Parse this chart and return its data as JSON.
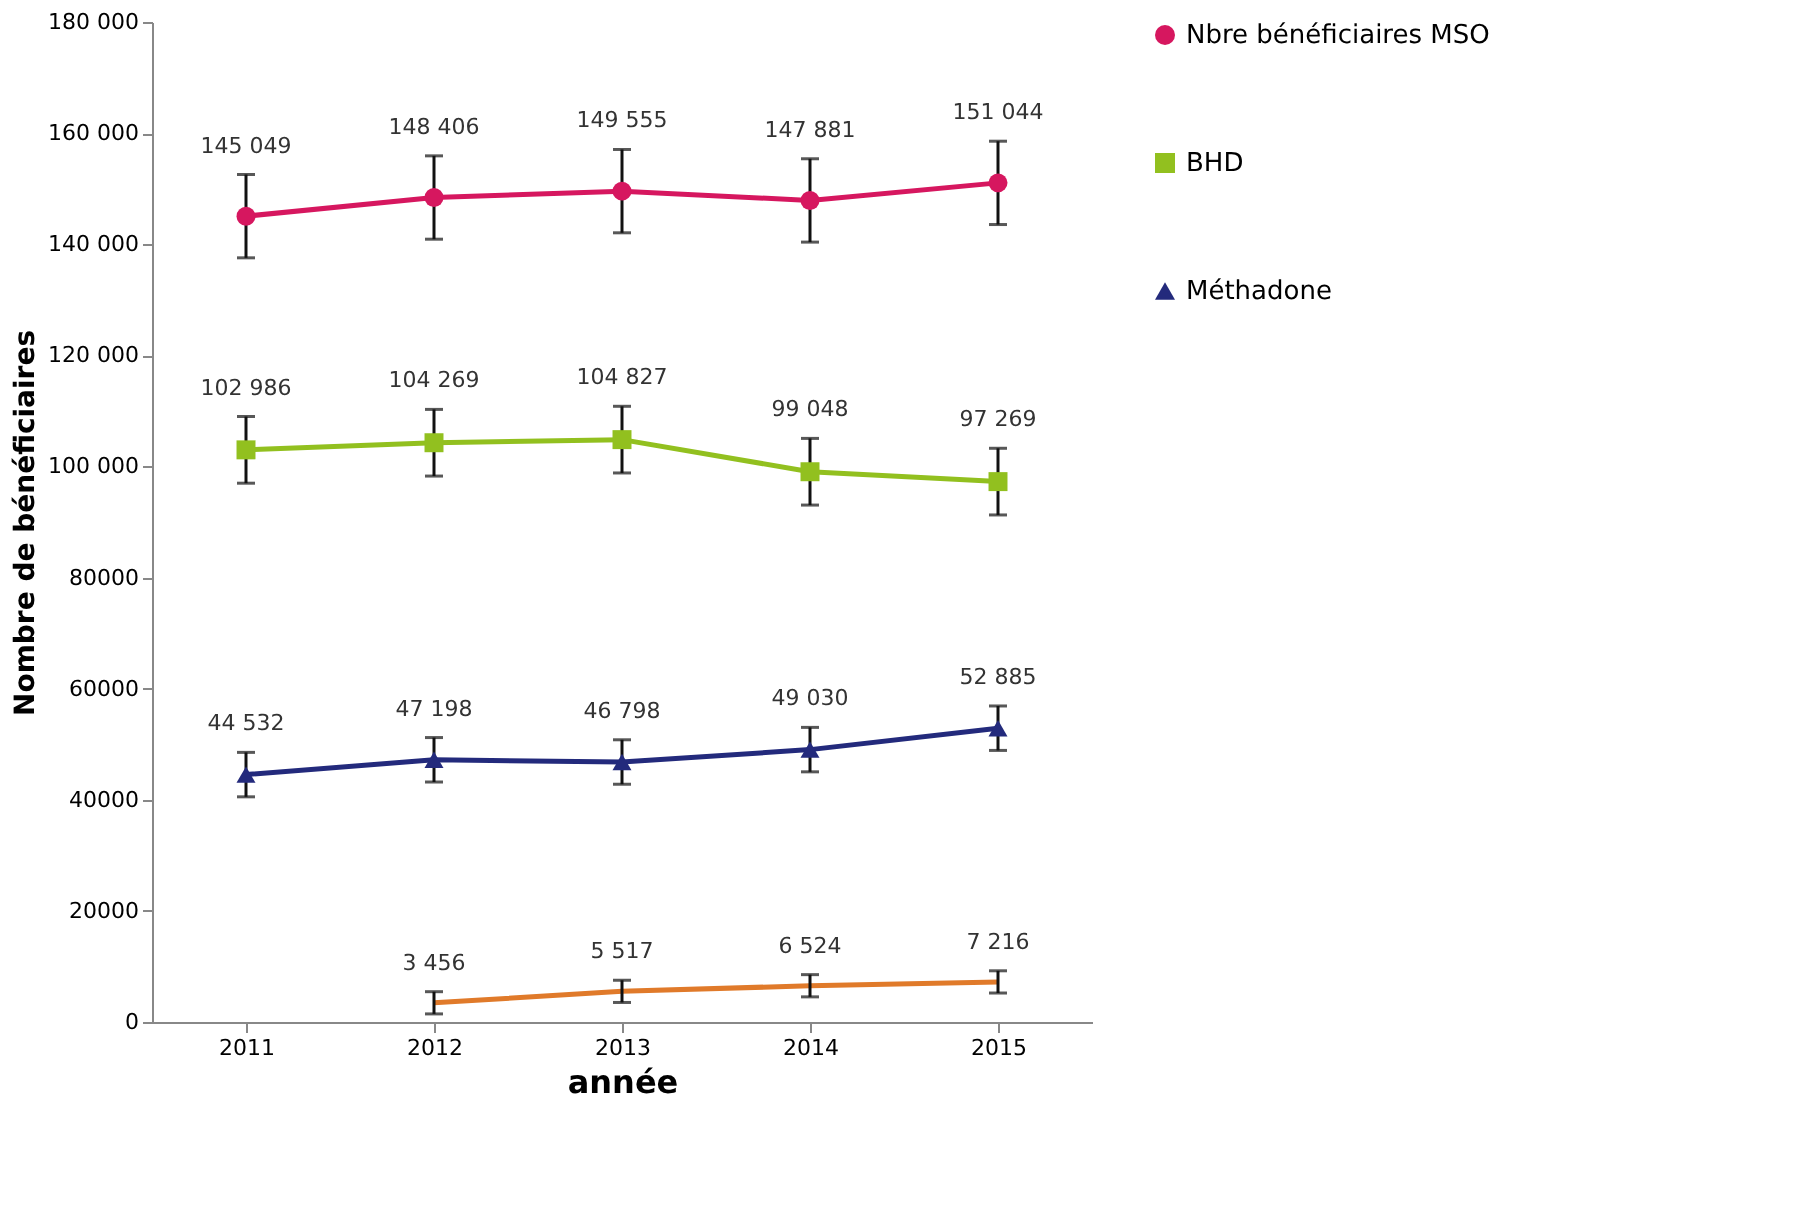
{
  "chart_data": {
    "type": "line",
    "xlabel": "année",
    "ylabel": "Nombre de bénéficiaires",
    "categories": [
      "2011",
      "2012",
      "2013",
      "2014",
      "2015"
    ],
    "series": [
      {
        "name": "Nbre bénéficiaires MSO",
        "color": "#d6175f",
        "marker": "circle",
        "values": [
          145049,
          148406,
          149555,
          147881,
          151044
        ],
        "errors": [
          7500,
          7500,
          7500,
          7500,
          7500
        ],
        "value_labels": [
          "145 049",
          "148 406",
          "149 555",
          "147 881",
          "151 044"
        ]
      },
      {
        "name": "BHD",
        "color": "#92c01f",
        "marker": "square",
        "values": [
          102986,
          104269,
          104827,
          99048,
          97269
        ],
        "errors": [
          6000,
          6000,
          6000,
          6000,
          6000
        ],
        "value_labels": [
          "102 986",
          "104 269",
          "104 827",
          "99 048",
          "97 269"
        ]
      },
      {
        "name": "Méthadone",
        "color": "#232a7c",
        "marker": "triangle",
        "values": [
          44532,
          47198,
          46798,
          49030,
          52885
        ],
        "errors": [
          4000,
          4000,
          4000,
          4000,
          4000
        ],
        "value_labels": [
          "44 532",
          "47 198",
          "46 798",
          "49 030",
          "52 885"
        ]
      },
      {
        "color": "#e07a2a",
        "marker": "none",
        "values": [
          null,
          3456,
          5517,
          6524,
          7216
        ],
        "errors": [
          null,
          2000,
          2000,
          2000,
          2000
        ],
        "value_labels": [
          null,
          "3 456",
          "5 517",
          "6 524",
          "7 216"
        ]
      }
    ],
    "ylim": [
      0,
      180000
    ],
    "yticks": [
      0,
      20000,
      40000,
      60000,
      80000,
      {
        "value": 100000,
        "label": "100 000"
      },
      {
        "value": 120000,
        "label": "120 000"
      },
      {
        "value": 140000,
        "label": "140 000"
      },
      {
        "value": 160000,
        "label": "160 000"
      },
      {
        "value": 180000,
        "label": "180 000"
      }
    ],
    "grid": false,
    "legend": "right",
    "line_style": "solid"
  }
}
